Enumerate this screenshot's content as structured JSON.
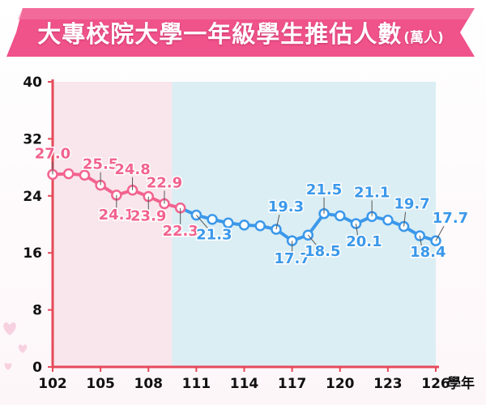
{
  "title": "大專校院大學一年級學生推估人數",
  "title_unit": "(萬人)",
  "colors": {
    "banner": "#f0528a",
    "historical": "#f2638f",
    "projection": "#3b98ea",
    "historical_bg": "#f8e6ec",
    "projection_bg": "#dbeef4",
    "axis": "#e6495a",
    "tick_text": "#111111"
  },
  "chart_data": {
    "type": "line",
    "xlabel": "學年",
    "ylabel": "",
    "xlim": [
      102,
      126
    ],
    "ylim": [
      0,
      40
    ],
    "y_ticks": [
      "0",
      "8",
      "16",
      "24",
      "32",
      "40"
    ],
    "x_ticks": [
      "102",
      "105",
      "108",
      "111",
      "114",
      "117",
      "120",
      "123",
      "126"
    ],
    "x_tick_values": [
      102,
      105,
      108,
      111,
      114,
      117,
      120,
      123,
      126
    ],
    "projection_start": 111,
    "grid": false,
    "series": [
      {
        "x": [
          102,
          103,
          104,
          105,
          106,
          107,
          108,
          109,
          110
        ],
        "values": [
          27.0,
          27.1,
          26.9,
          25.5,
          24.1,
          24.8,
          23.9,
          22.9,
          22.3
        ],
        "labeled_index": [
          0,
          3,
          4,
          5,
          6,
          7,
          8
        ],
        "labels": [
          "27.0",
          "25.5",
          "24.1",
          "24.8",
          "23.9",
          "22.9",
          "22.3"
        ]
      },
      {
        "x": [
          110,
          111,
          112,
          113,
          114,
          115,
          116,
          117,
          118,
          119,
          120,
          121,
          122,
          123,
          124,
          125,
          126
        ],
        "values": [
          22.3,
          21.3,
          20.7,
          20.2,
          19.9,
          19.8,
          19.3,
          17.7,
          18.5,
          21.5,
          21.2,
          20.1,
          21.1,
          20.6,
          19.7,
          18.4,
          17.7
        ],
        "labeled_index": [
          1,
          6,
          7,
          8,
          9,
          11,
          12,
          14,
          15,
          16
        ],
        "labels": [
          "21.3",
          "19.3",
          "17.7",
          "18.5",
          "21.5",
          "20.1",
          "21.1",
          "19.7",
          "18.4",
          "17.7"
        ]
      }
    ]
  }
}
